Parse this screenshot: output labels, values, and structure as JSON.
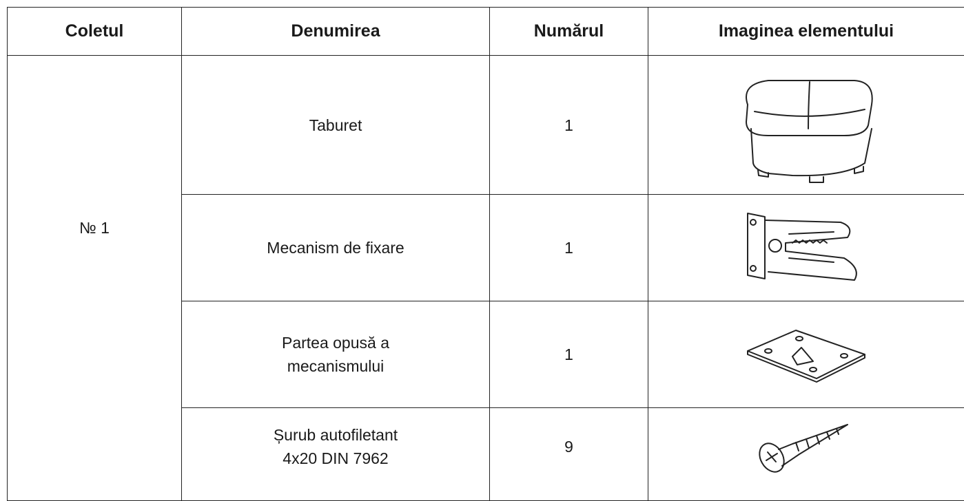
{
  "table": {
    "header": [
      "Coletul",
      "Denumirea",
      "Numărul",
      "Imaginea elementului"
    ],
    "package": "№ 1",
    "rows": [
      {
        "name": [
          "Taburet"
        ],
        "count": 1
      },
      {
        "name": [
          "Mecanism de fixare"
        ],
        "count": 1
      },
      {
        "name": [
          "Partea opusă a",
          "mecanismului"
        ],
        "count": 1
      },
      {
        "name": [
          "Șurub autofiletant",
          "4x20 DIN 7962"
        ],
        "count": 9
      }
    ]
  }
}
